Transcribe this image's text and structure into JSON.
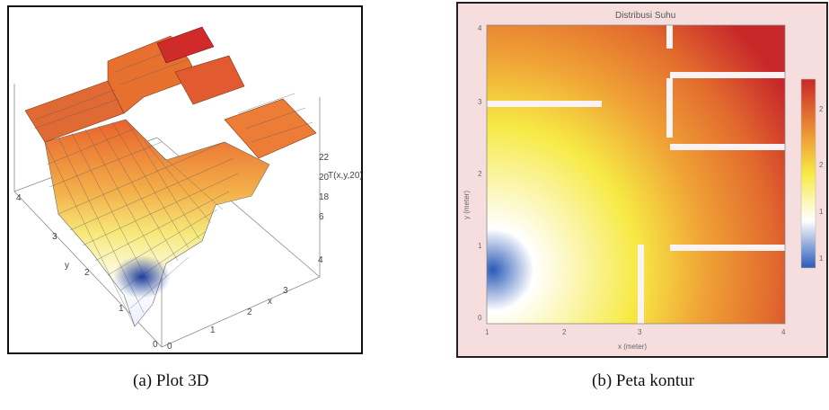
{
  "figure_a": {
    "caption": "(a) Plot 3D",
    "z_axis_label": "T(x,y,20)",
    "z_ticks": [
      "22",
      "20",
      "18",
      "6"
    ],
    "y_ticks": [
      "4",
      "3",
      "2",
      "1",
      "0"
    ],
    "x_ticks": [
      "4",
      "3",
      "2",
      "1",
      "0"
    ],
    "x_axis_label": "x",
    "y_axis_label": "y"
  },
  "figure_b": {
    "caption": "(b) Peta kontur",
    "title": "Distribusi Suhu",
    "x_ticks": [
      "1",
      "2",
      "3",
      "4"
    ],
    "y_ticks": [
      "4",
      "3",
      "2",
      "1",
      "0"
    ],
    "xlabel": "x (meter)",
    "ylabel": "y (meter)",
    "colorbar_ticks": [
      "2",
      "2",
      "1",
      "1"
    ]
  },
  "colors": {
    "hot": "#c8272a",
    "warm": "#e8782c",
    "mid": "#f5e43c",
    "cool": "#ffffff",
    "cold": "#2a5ab8",
    "frame_bg": "#f7dede"
  }
}
